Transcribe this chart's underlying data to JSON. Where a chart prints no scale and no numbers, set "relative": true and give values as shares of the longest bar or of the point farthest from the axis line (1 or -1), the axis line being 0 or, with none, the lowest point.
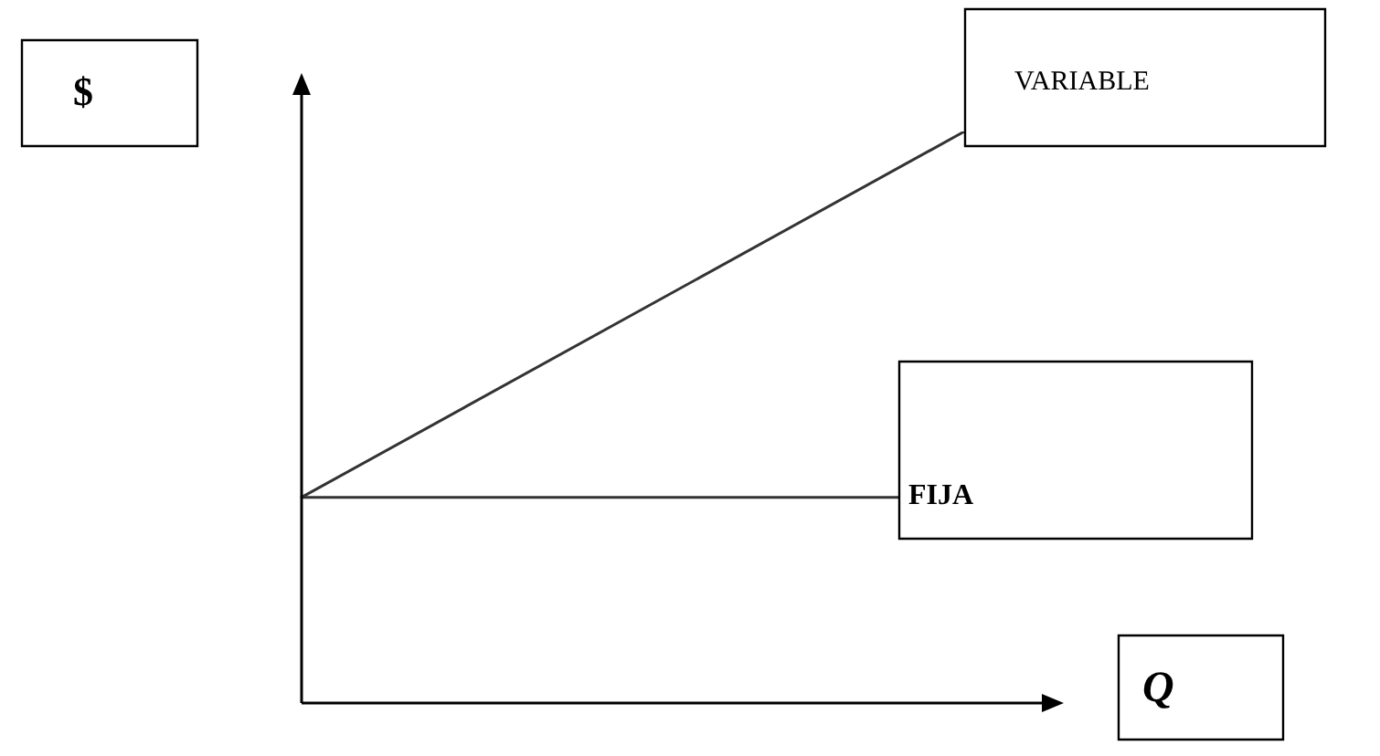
{
  "chart_data": {
    "type": "line",
    "relative": true,
    "xlabel": "Q",
    "annotations": [
      "$"
    ],
    "marker": "none",
    "categories": [
      null,
      null,
      null,
      null,
      null,
      null,
      null,
      null,
      null,
      null,
      null,
      null,
      null,
      null,
      null,
      null,
      null,
      null,
      null,
      null,
      null,
      null,
      null,
      null
    ],
    "series": [
      {
        "name": "VARIABLE",
        "color": "#333333",
        "values": [
          0.36,
          null,
          null,
          null,
          null,
          null,
          null,
          null,
          null,
          null,
          null,
          null,
          null,
          null,
          null,
          null,
          null,
          null,
          null,
          null,
          1,
          null,
          null,
          null
        ]
      },
      {
        "name": "FIJA",
        "color": "#333333",
        "values": [
          0.36,
          null,
          null,
          null,
          null,
          null,
          null,
          null,
          null,
          null,
          null,
          null,
          null,
          null,
          null,
          null,
          null,
          null,
          0.36,
          null,
          null,
          null,
          null,
          null
        ]
      }
    ]
  }
}
